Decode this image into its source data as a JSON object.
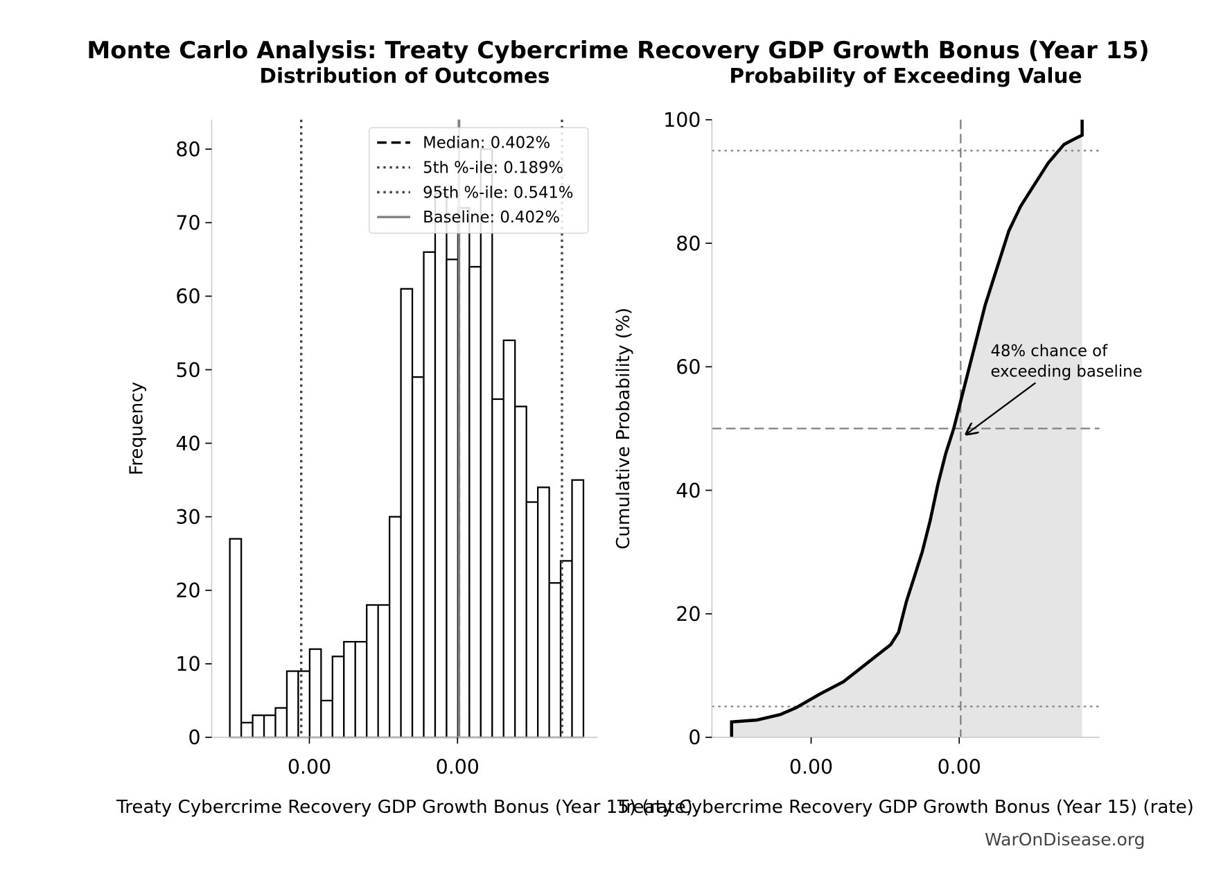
{
  "title": "Monte Carlo Analysis: Treaty Cybercrime Recovery GDP Growth Bonus (Year 15)",
  "watermark": "WarOnDisease.org",
  "chart_data": [
    {
      "type": "histogram",
      "title": "Distribution of Outcomes",
      "xlabel": "Treaty Cybercrime Recovery GDP Growth Bonus (Year 15) (rate)",
      "ylabel": "Frequency",
      "bins": [
        0.000926,
        0.00108,
        0.001234,
        0.001388,
        0.001542,
        0.001696,
        0.00185,
        0.002004,
        0.002158,
        0.002312,
        0.002466,
        0.00262,
        0.002774,
        0.002928,
        0.003082,
        0.003236,
        0.00339,
        0.003544,
        0.003698,
        0.003852,
        0.004006,
        0.00416,
        0.004314,
        0.004468,
        0.004622,
        0.004776,
        0.00493,
        0.005084,
        0.005238,
        0.005392,
        0.005546,
        0.0057
      ],
      "values": [
        27,
        2,
        3,
        3,
        4,
        9,
        9,
        12,
        5,
        11,
        13,
        13,
        18,
        18,
        30,
        61,
        49,
        66,
        74,
        65,
        72,
        64,
        80,
        46,
        54,
        45,
        32,
        34,
        21,
        24,
        35
      ],
      "color": "#ffffff",
      "edgecolor": "#000000",
      "xlim": [
        0.000681,
        0.005892
      ],
      "ylim": [
        0,
        84
      ],
      "xticks": [
        {
          "value": 0.002,
          "label": "0.00"
        },
        {
          "value": 0.004,
          "label": "0.00"
        }
      ],
      "yticks": [
        0,
        10,
        20,
        30,
        40,
        50,
        60,
        70,
        80
      ],
      "lines": [
        {
          "name": "Median: 0.402%",
          "value": 0.00402,
          "style": "dashed",
          "color": "#000000"
        },
        {
          "name": "5th %-ile: 0.189%",
          "value": 0.00189,
          "style": "dotted",
          "color": "#444444"
        },
        {
          "name": "95th %-ile: 0.541%",
          "value": 0.00541,
          "style": "dotted",
          "color": "#444444"
        },
        {
          "name": "Baseline: 0.402%",
          "value": 0.00402,
          "style": "solid",
          "color": "#808080"
        }
      ],
      "legend": "upper right"
    },
    {
      "type": "line",
      "title": "Probability of Exceeding Value",
      "xlabel": "Treaty Cybercrime Recovery GDP Growth Bonus (Year 15) (rate)",
      "ylabel": "Cumulative Probability (%)",
      "x": [
        0.000926,
        0.000926,
        0.001266,
        0.001585,
        0.001798,
        0.002117,
        0.002436,
        0.002755,
        0.003074,
        0.003181,
        0.003287,
        0.003394,
        0.0035,
        0.003606,
        0.003713,
        0.003819,
        0.003926,
        0.004032,
        0.004138,
        0.004245,
        0.004351,
        0.004457,
        0.004564,
        0.00467,
        0.00483,
        0.004989,
        0.005202,
        0.005415,
        0.005574,
        0.00566,
        0.00566
      ],
      "values": [
        0,
        2.5,
        2.8,
        3.7,
        4.8,
        7,
        9,
        12,
        15,
        17,
        22,
        26,
        30,
        35,
        41,
        46,
        50,
        55,
        60,
        65,
        70,
        74,
        78,
        82,
        86,
        89,
        93,
        96,
        97,
        97.5,
        100
      ],
      "color": "#000000",
      "fill": "#e5e5e5",
      "xlim": [
        0.00066,
        0.005894
      ],
      "ylim": [
        0,
        100
      ],
      "xticks": [
        {
          "value": 0.002,
          "label": "0.00"
        },
        {
          "value": 0.004,
          "label": "0.00"
        }
      ],
      "yticks": [
        0,
        20,
        40,
        60,
        80,
        100
      ],
      "hlines": [
        {
          "value": 5,
          "style": "dotted"
        },
        {
          "value": 95,
          "style": "dotted"
        },
        {
          "value": 50,
          "style": "dashed"
        }
      ],
      "vlines": [
        {
          "value": 0.00402,
          "style": "dashed"
        }
      ],
      "annotation": {
        "text": [
          "48% chance of",
          "exceeding baseline"
        ]
      }
    }
  ]
}
